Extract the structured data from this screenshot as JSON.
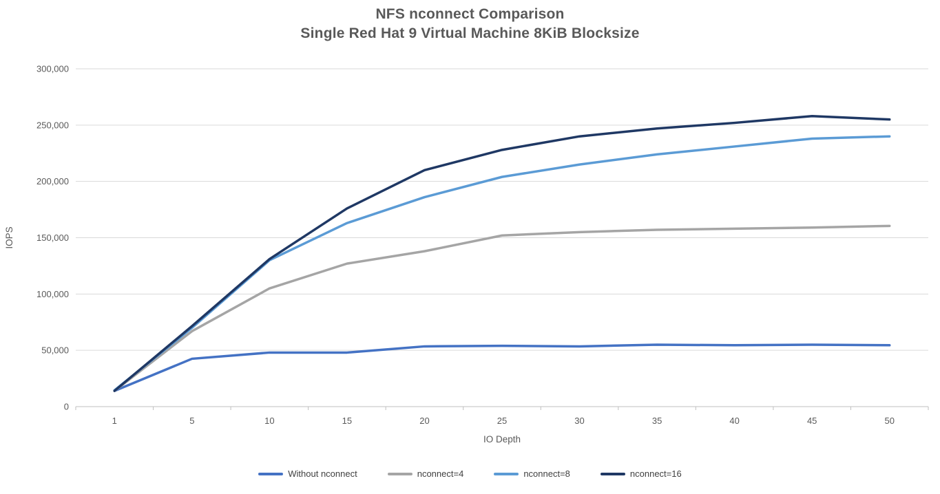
{
  "chart_data": {
    "type": "line",
    "title": "NFS nconnect Comparison",
    "subtitle": "Single Red Hat 9 Virtual Machine 8KiB Blocksize",
    "xlabel": "IO Depth",
    "ylabel": "IOPS",
    "categories": [
      "1",
      "5",
      "10",
      "15",
      "20",
      "25",
      "30",
      "35",
      "40",
      "45",
      "50"
    ],
    "series": [
      {
        "name": "Without nconnect",
        "color": "#4472C4",
        "values": [
          14000,
          42500,
          48000,
          48000,
          53500,
          54000,
          53500,
          55000,
          54500,
          55000,
          54500
        ]
      },
      {
        "name": "nconnect=4",
        "color": "#A5A5A5",
        "values": [
          14000,
          67000,
          105000,
          127000,
          138000,
          152000,
          155000,
          157000,
          158000,
          159000,
          160500
        ]
      },
      {
        "name": "nconnect=8",
        "color": "#5B9BD5",
        "values": [
          14500,
          70000,
          130000,
          163000,
          186000,
          204000,
          215000,
          224000,
          231000,
          238000,
          240000
        ]
      },
      {
        "name": "nconnect=16",
        "color": "#1F3864",
        "values": [
          14000,
          71500,
          131000,
          176000,
          210000,
          228000,
          240000,
          247000,
          252000,
          258000,
          255000
        ]
      }
    ],
    "ylim": [
      0,
      300000
    ],
    "y_ticks": [
      {
        "value": 0,
        "label": "0"
      },
      {
        "value": 50000,
        "label": "50,000"
      },
      {
        "value": 100000,
        "label": "100,000"
      },
      {
        "value": 150000,
        "label": "150,000"
      },
      {
        "value": 200000,
        "label": "200,000"
      },
      {
        "value": 250000,
        "label": "250,000"
      },
      {
        "value": 300000,
        "label": "300,000"
      }
    ],
    "grid": "horizontal",
    "legend_position": "bottom",
    "colors": {
      "gridline": "#D9D9D9",
      "axis": "#BFBFBF",
      "tick_label": "#595959",
      "axis_title": "#595959",
      "title_text": "#595959",
      "legend_text": "#404040",
      "background": "#FFFFFF"
    }
  }
}
